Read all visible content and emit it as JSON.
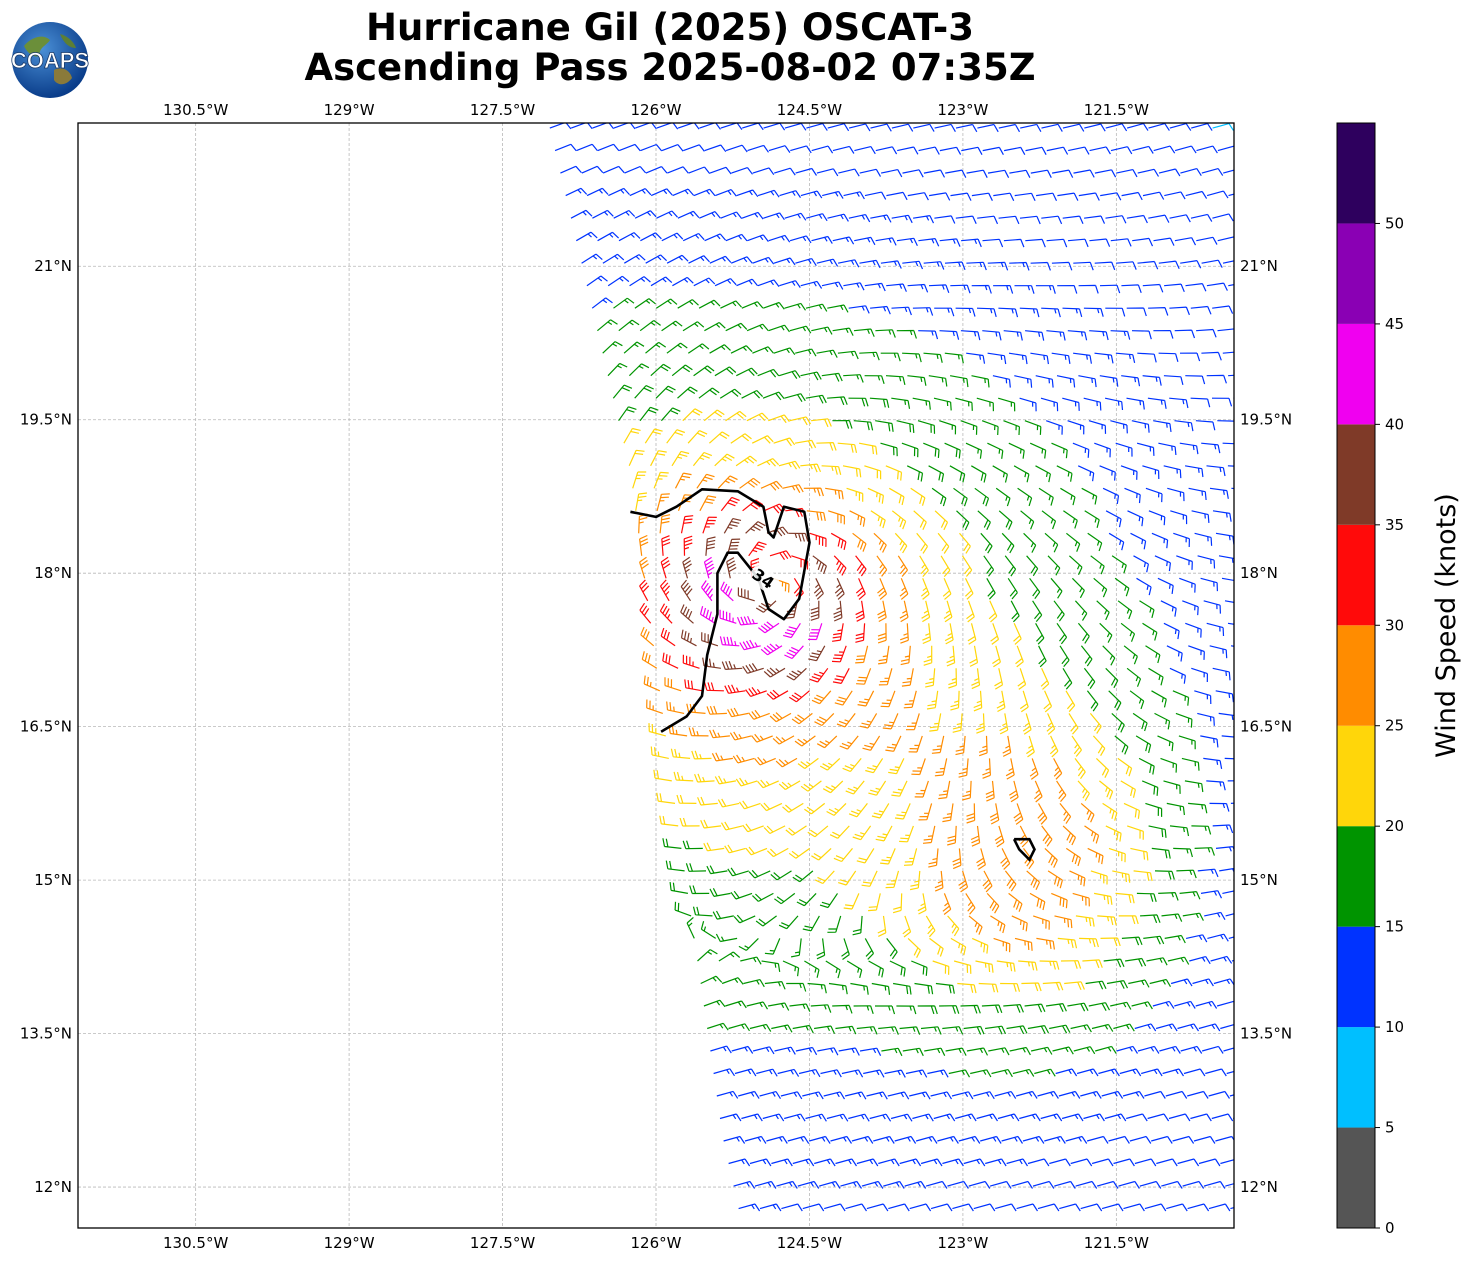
{
  "title": {
    "line1": "Hurricane Gil (2025) OSCAT-3",
    "line2": "Ascending Pass 2025-08-02 07:35Z"
  },
  "logo": {
    "text": "COAPS",
    "icon": "globe-logo-icon"
  },
  "map": {
    "lon_range": [
      -131.65,
      -120.35
    ],
    "lat_range": [
      11.6,
      22.4
    ],
    "grid": true,
    "lon_ticks": [
      {
        "value": -130.5,
        "label": "130.5°W"
      },
      {
        "value": -129.0,
        "label": "129°W"
      },
      {
        "value": -127.5,
        "label": "127.5°W"
      },
      {
        "value": -126.0,
        "label": "126°W"
      },
      {
        "value": -124.5,
        "label": "124.5°W"
      },
      {
        "value": -123.0,
        "label": "123°W"
      },
      {
        "value": -121.5,
        "label": "121.5°W"
      }
    ],
    "lat_ticks": [
      {
        "value": 21.0,
        "label": "21°N"
      },
      {
        "value": 19.5,
        "label": "19.5°N"
      },
      {
        "value": 18.0,
        "label": "18°N"
      },
      {
        "value": 16.5,
        "label": "16.5°N"
      },
      {
        "value": 15.0,
        "label": "15°N"
      },
      {
        "value": 13.5,
        "label": "13.5°N"
      },
      {
        "value": 12.0,
        "label": "12°N"
      }
    ],
    "swath": {
      "description_free": true,
      "west_edge": [
        [
          -127.1,
          22.4
        ],
        [
          -126.3,
          19.0
        ],
        [
          -125.9,
          16.0
        ],
        [
          -125.4,
          12.5
        ],
        [
          -125.2,
          11.6
        ]
      ],
      "east_edge": -120.35
    },
    "storm_center": {
      "lon": -124.9,
      "lat": 17.9
    },
    "contour_34kt": {
      "label": "34",
      "main": [
        [
          -126.25,
          18.6
        ],
        [
          -126.0,
          18.55
        ],
        [
          -125.8,
          18.65
        ],
        [
          -125.55,
          18.82
        ],
        [
          -125.2,
          18.8
        ],
        [
          -124.95,
          18.65
        ],
        [
          -124.9,
          18.4
        ],
        [
          -124.85,
          18.35
        ],
        [
          -124.75,
          18.65
        ],
        [
          -124.55,
          18.6
        ],
        [
          -124.5,
          18.3
        ],
        [
          -124.6,
          17.75
        ],
        [
          -124.75,
          17.55
        ],
        [
          -124.9,
          17.65
        ],
        [
          -125.0,
          17.95
        ],
        [
          -125.2,
          18.2
        ],
        [
          -125.3,
          18.2
        ],
        [
          -125.4,
          18.0
        ],
        [
          -125.4,
          17.6
        ],
        [
          -125.5,
          17.2
        ],
        [
          -125.55,
          16.8
        ],
        [
          -125.7,
          16.6
        ],
        [
          -125.95,
          16.45
        ]
      ],
      "small": [
        [
          -122.5,
          15.4
        ],
        [
          -122.35,
          15.4
        ],
        [
          -122.3,
          15.3
        ],
        [
          -122.35,
          15.2
        ],
        [
          -122.45,
          15.3
        ],
        [
          -122.5,
          15.4
        ]
      ]
    },
    "sampling": {
      "spacing_deg": 0.22
    }
  },
  "colorbar": {
    "title": "Wind Speed (knots)",
    "vmin": 0,
    "vmax": 55,
    "bins": [
      {
        "from": 0,
        "to": 5,
        "color": "#555555"
      },
      {
        "from": 5,
        "to": 10,
        "color": "#00bfff"
      },
      {
        "from": 10,
        "to": 15,
        "color": "#0033ff"
      },
      {
        "from": 15,
        "to": 20,
        "color": "#009400"
      },
      {
        "from": 20,
        "to": 25,
        "color": "#ffd60a"
      },
      {
        "from": 25,
        "to": 30,
        "color": "#ff8c00"
      },
      {
        "from": 30,
        "to": 35,
        "color": "#ff0a0a"
      },
      {
        "from": 35,
        "to": 40,
        "color": "#7f3a28"
      },
      {
        "from": 40,
        "to": 45,
        "color": "#f000f0"
      },
      {
        "from": 45,
        "to": 50,
        "color": "#8a00b4"
      },
      {
        "from": 50,
        "to": 55,
        "color": "#2e005e"
      }
    ],
    "tick_labels": [
      "0",
      "5",
      "10",
      "15",
      "20",
      "25",
      "30",
      "35",
      "40",
      "45",
      "50"
    ]
  }
}
